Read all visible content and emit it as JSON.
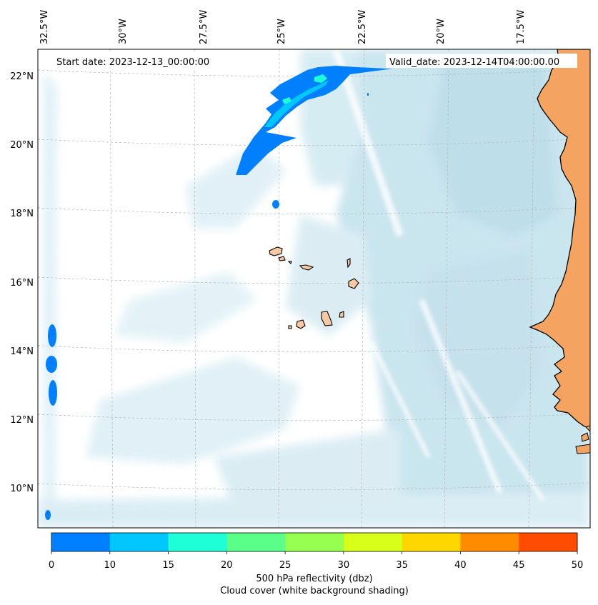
{
  "header": {
    "start_label": "Start date: 2023-12-13_00:00:00",
    "valid_label": "Valid_date: 2023-12-14T04:00:00.00"
  },
  "axes": {
    "lon_ticks": [
      "32.5°W",
      "30°W",
      "27.5°W",
      "25°W",
      "22.5°W",
      "20°W",
      "17.5°W"
    ],
    "lat_ticks": [
      "22°N",
      "20°N",
      "18°N",
      "16°N",
      "14°N",
      "12°N",
      "10°N"
    ]
  },
  "colorbar": {
    "ticks": [
      "0",
      "10",
      "15",
      "20",
      "25",
      "30",
      "35",
      "40",
      "45",
      "50"
    ],
    "colors": [
      "#0080ff",
      "#00c8ff",
      "#1effd8",
      "#5aff8a",
      "#96ff50",
      "#d8ff1a",
      "#ffd700",
      "#ff8c00",
      "#ff4d00"
    ],
    "label_line1": "500 hPa reflectivity (dbz)",
    "label_line2": "Cloud cover (white background shading)"
  },
  "colors": {
    "land": "#f4a460",
    "land_light": "#f7c9a2",
    "cloud": "#add8e6",
    "reflectivity_low": "#0080ff",
    "reflectivity_mid": "#00c8ff",
    "reflectivity_high": "#1effd8"
  }
}
